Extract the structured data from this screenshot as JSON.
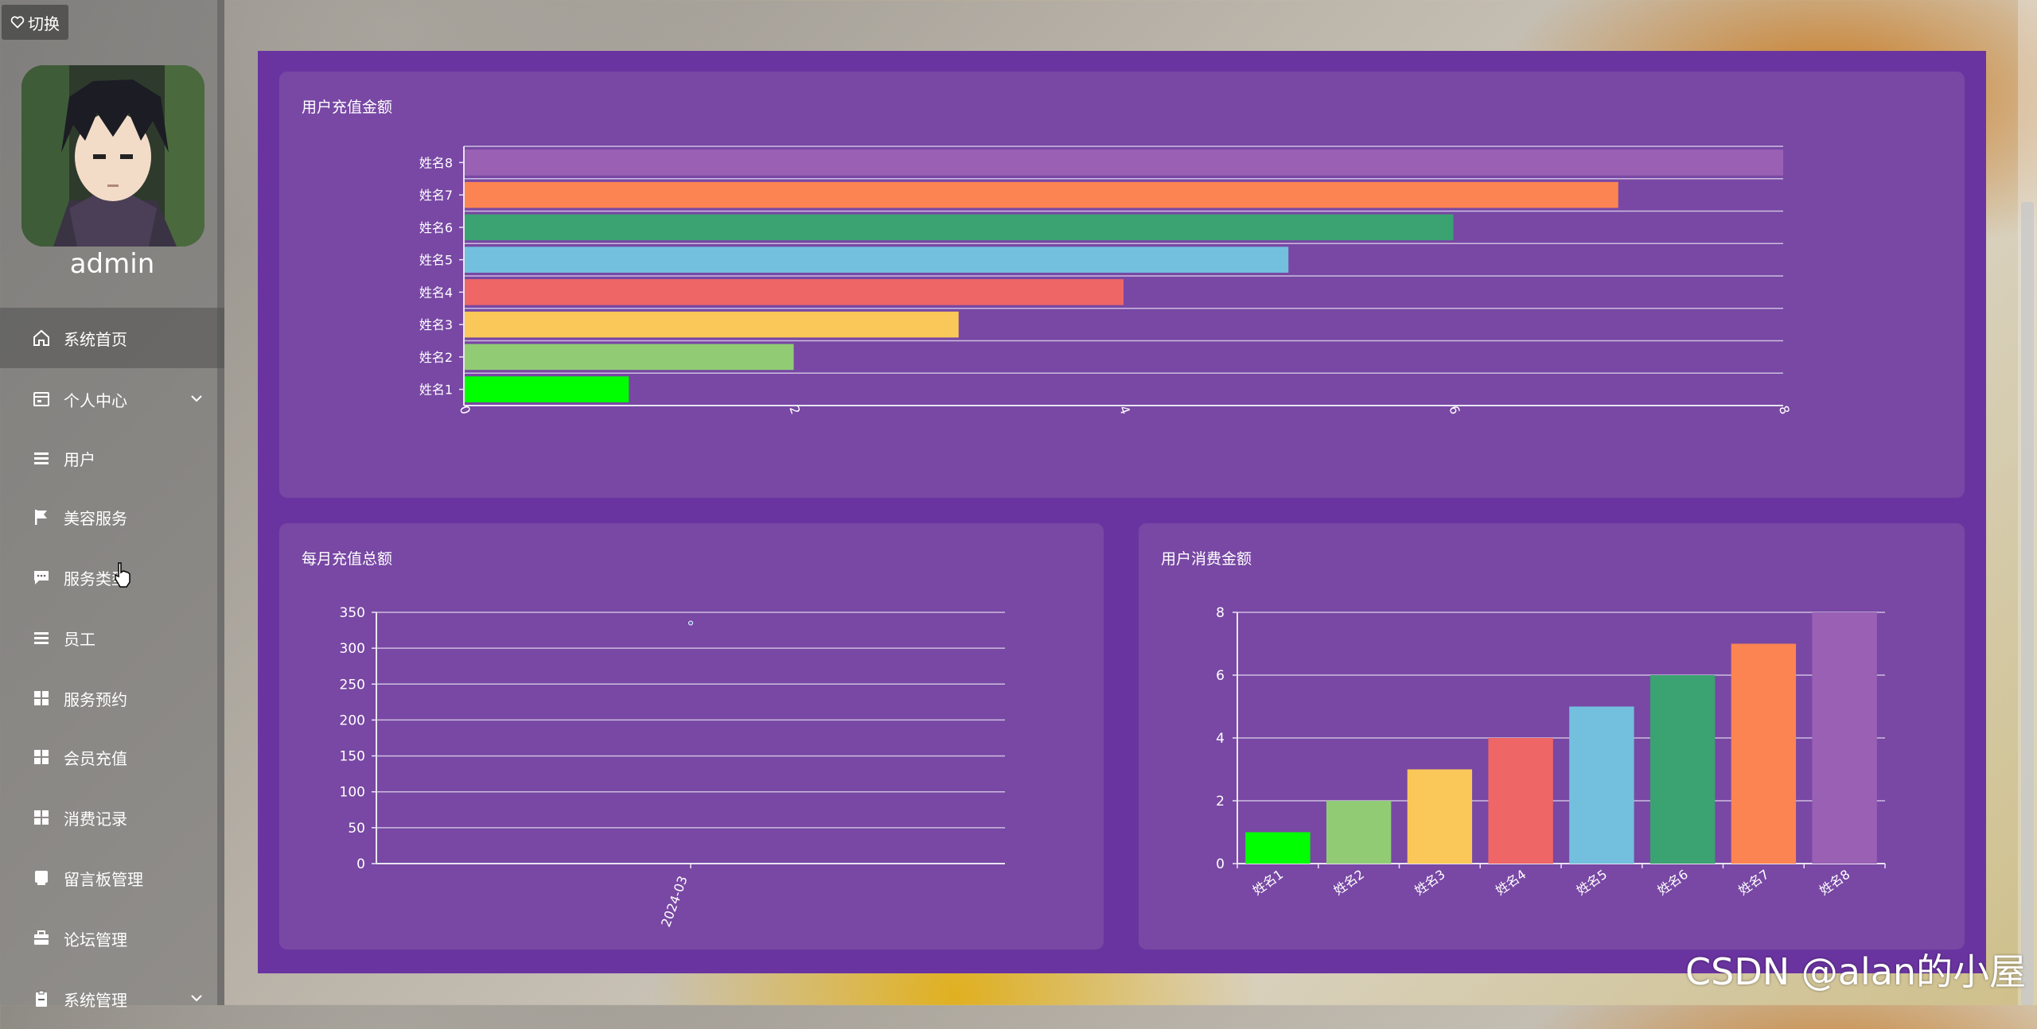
{
  "sidebar": {
    "switch_label": "切换",
    "username": "admin",
    "items": [
      {
        "label": "系统首页",
        "icon": "home-icon",
        "active": true,
        "expandable": false
      },
      {
        "label": "个人中心",
        "icon": "calendar-icon",
        "active": false,
        "expandable": true
      },
      {
        "label": "用户",
        "icon": "list-icon",
        "active": false,
        "expandable": false
      },
      {
        "label": "美容服务",
        "icon": "flag-icon",
        "active": false,
        "expandable": false
      },
      {
        "label": "服务类型",
        "icon": "chat-icon",
        "active": false,
        "expandable": false
      },
      {
        "label": "员工",
        "icon": "list-icon",
        "active": false,
        "expandable": false
      },
      {
        "label": "服务预约",
        "icon": "grid-icon",
        "active": false,
        "expandable": false
      },
      {
        "label": "会员充值",
        "icon": "grid-icon",
        "active": false,
        "expandable": false
      },
      {
        "label": "消费记录",
        "icon": "grid-icon",
        "active": false,
        "expandable": false
      },
      {
        "label": "留言板管理",
        "icon": "message-icon",
        "active": false,
        "expandable": false
      },
      {
        "label": "论坛管理",
        "icon": "briefcase-icon",
        "active": false,
        "expandable": false
      },
      {
        "label": "系统管理",
        "icon": "clipboard-icon",
        "active": false,
        "expandable": true
      }
    ]
  },
  "watermark": "CSDN @alan的小屋",
  "colors": [
    "#00ff00",
    "#91cc75",
    "#fac858",
    "#ee6666",
    "#73c0de",
    "#3ba272",
    "#fc8452",
    "#9a60b4"
  ],
  "chart_data": [
    {
      "type": "bar",
      "orientation": "horizontal",
      "title": "用户充值金额",
      "categories": [
        "姓名1",
        "姓名2",
        "姓名3",
        "姓名4",
        "姓名5",
        "姓名6",
        "姓名7",
        "姓名8"
      ],
      "values": [
        1,
        2,
        3,
        4,
        5,
        6,
        7,
        8
      ],
      "xlim": [
        0,
        8
      ],
      "xticks": [
        0,
        2,
        4,
        6,
        8
      ],
      "grid": true,
      "legend": "none"
    },
    {
      "type": "line",
      "title": "每月充值总额",
      "categories": [
        "2024-03"
      ],
      "values": [
        335
      ],
      "ylim": [
        0,
        350
      ],
      "yticks": [
        0,
        50,
        100,
        150,
        200,
        250,
        300,
        350
      ],
      "grid": true,
      "legend": "none"
    },
    {
      "type": "bar",
      "title": "用户消费金额",
      "categories": [
        "姓名1",
        "姓名2",
        "姓名3",
        "姓名4",
        "姓名5",
        "姓名6",
        "姓名7",
        "姓名8"
      ],
      "values": [
        1,
        2,
        3,
        4,
        5,
        6,
        7,
        8
      ],
      "ylim": [
        0,
        8
      ],
      "yticks": [
        0,
        2,
        4,
        6,
        8
      ],
      "grid": true,
      "legend": "none"
    }
  ]
}
